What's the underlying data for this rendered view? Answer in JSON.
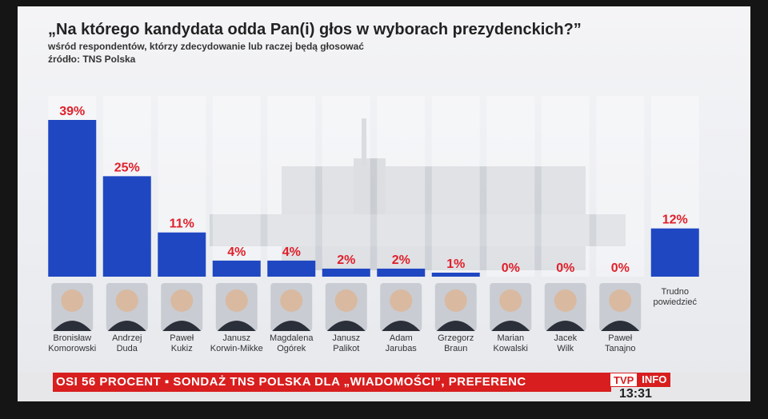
{
  "header": {
    "title": "„Na którego kandydata odda Pan(i) głos w wyborach prezydenckich?”",
    "subtitle": "wśród respondentów, którzy zdecydowanie lub raczej będą głosować",
    "source": "źródło: TNS Polska"
  },
  "colors": {
    "bar": "#1f47c2",
    "value_label": "#e0202a",
    "ticker": "#d81e1e"
  },
  "chart_data": {
    "type": "bar",
    "title": "„Na którego kandydata odda Pan(i) głos w wyborach prezydenckich?”",
    "categories": [
      [
        "Bronisław",
        "Komorowski"
      ],
      [
        "Andrzej",
        "Duda"
      ],
      [
        "Paweł",
        "Kukiz"
      ],
      [
        "Janusz",
        "Korwin-Mikke"
      ],
      [
        "Magdalena",
        "Ogórek"
      ],
      [
        "Janusz",
        "Palikot"
      ],
      [
        "Adam",
        "Jarubas"
      ],
      [
        "Grzegorz",
        "Braun"
      ],
      [
        "Marian",
        "Kowalski"
      ],
      [
        "Jacek",
        "Wilk"
      ],
      [
        "Paweł",
        "Tanajno"
      ],
      [
        "Trudno",
        "powiedzieć"
      ]
    ],
    "values": [
      39,
      25,
      11,
      4,
      4,
      2,
      2,
      1,
      0,
      0,
      0,
      12
    ],
    "value_labels": [
      "39%",
      "25%",
      "11%",
      "4%",
      "4%",
      "2%",
      "2%",
      "1%",
      "0%",
      "0%",
      "0%",
      "12%"
    ],
    "ylim": [
      0,
      39
    ],
    "grid": false,
    "legend": "none"
  },
  "ticker": {
    "text": "OSI 56 PROCENT ▪ SONDAŻ TNS POLSKA DLA „WIADOMOŚCI”, PREFERENC",
    "logo_left": "TVP",
    "logo_right": "INFO",
    "time": "13:31"
  }
}
